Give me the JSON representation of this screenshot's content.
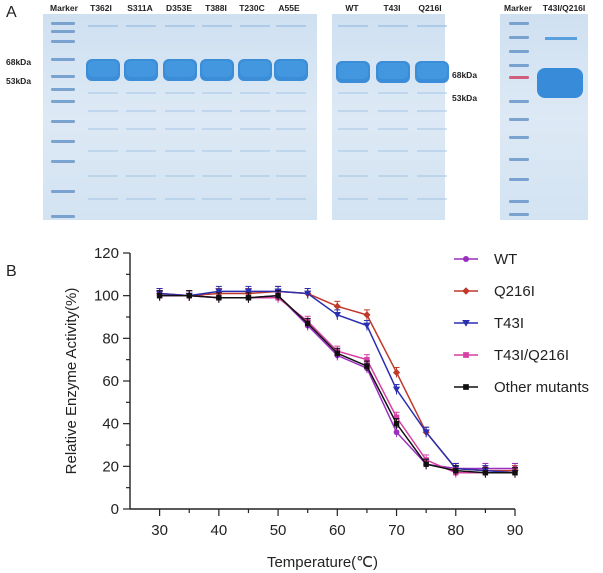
{
  "panel_a": {
    "label": "A",
    "gel1": {
      "lane_labels": [
        "Marker",
        "T362I",
        "S311A",
        "D353E",
        "T388I",
        "T230C",
        "A55E"
      ],
      "marker_sizes": [
        "68kDa",
        "53kDa"
      ]
    },
    "gel2": {
      "lane_labels": [
        "WT",
        "T43I",
        "Q216I"
      ],
      "marker_sizes": [
        "68kDa",
        "53kDa"
      ]
    },
    "gel3": {
      "lane_labels": [
        "Marker",
        "T43I/Q216I"
      ]
    },
    "colors": {
      "gel_background": "#dbe8f4",
      "protein_band": "#2e86d6",
      "marker_band": "#6a97c9",
      "marker_red": "#d0456a"
    }
  },
  "panel_b": {
    "label": "B"
  },
  "chart_data": {
    "type": "line",
    "xlabel": "Temperature(℃)",
    "ylabel": "Relative Enzyme Activity(%)",
    "x": [
      30,
      35,
      40,
      45,
      50,
      55,
      60,
      65,
      70,
      75,
      80,
      85,
      90
    ],
    "xlim": [
      25,
      90
    ],
    "ylim": [
      0,
      120
    ],
    "xticks": [
      "30",
      "40",
      "50",
      "60",
      "70",
      "80",
      "90"
    ],
    "yticks": [
      "0",
      "20",
      "40",
      "60",
      "80",
      "100",
      "120"
    ],
    "legend_position": "top-right",
    "grid": false,
    "series": [
      {
        "name": "WT",
        "color": "#9a2fbf",
        "marker": "circle",
        "values": [
          100,
          100,
          99,
          99,
          100,
          86,
          72,
          66,
          36,
          21,
          19,
          19,
          19
        ]
      },
      {
        "name": "Q216I",
        "color": "#c0392b",
        "marker": "diamond",
        "values": [
          101,
          100,
          101,
          101,
          102,
          101,
          95,
          91,
          64,
          36,
          19,
          18,
          18
        ]
      },
      {
        "name": "T43I",
        "color": "#2a2fb0",
        "marker": "triangle-down",
        "values": [
          101,
          100,
          102,
          102,
          102,
          101,
          91,
          86,
          56,
          36,
          19,
          18,
          17
        ]
      },
      {
        "name": "T43I/Q216I",
        "color": "#d63fa3",
        "marker": "square",
        "values": [
          100,
          100,
          99,
          99,
          99,
          88,
          74,
          70,
          43,
          23,
          17,
          17,
          17
        ]
      },
      {
        "name": "Other mutants",
        "color": "#111111",
        "marker": "square",
        "values": [
          100,
          100,
          99,
          99,
          100,
          87,
          73,
          67,
          40,
          21,
          18,
          17,
          17
        ]
      }
    ]
  }
}
